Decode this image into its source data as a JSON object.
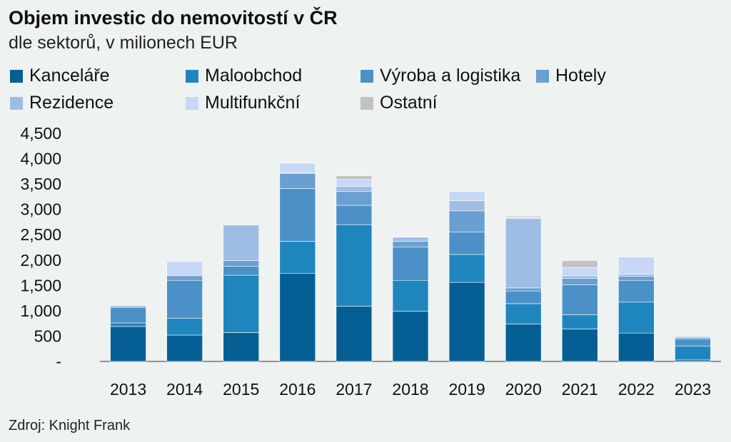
{
  "title": "Objem investic do nemovitostí v ČR",
  "subtitle": "dle sektorů, v milionech EUR",
  "source": "Zdroj: Knight Frank",
  "colors": {
    "Kanceláře": "#065f94",
    "Maloobchod": "#1f86bd",
    "Výroba a logistika": "#4b91c7",
    "Hotely": "#6a9fd1",
    "Rezidence": "#9ebde5",
    "Multifunkční": "#c6d8f6",
    "Ostatní": "#c2c2c2"
  },
  "chart_data": {
    "type": "bar",
    "stacked": true,
    "title": "Objem investic do nemovitostí v ČR",
    "subtitle": "dle sektorů, v milionech EUR",
    "xlabel": "",
    "ylabel": "",
    "ylim": [
      0,
      4500
    ],
    "yticks": [
      "-",
      "500",
      "1,000",
      "1,500",
      "2,000",
      "2,500",
      "3,000",
      "3,500",
      "4,000",
      "4,500"
    ],
    "grid": false,
    "legend_position": "top",
    "categories": [
      "2013",
      "2014",
      "2015",
      "2016",
      "2017",
      "2018",
      "2019",
      "2020",
      "2021",
      "2022",
      "2023"
    ],
    "series": [
      {
        "name": "Kanceláře",
        "values": [
          690,
          520,
          570,
          1740,
          1090,
          990,
          1560,
          740,
          640,
          560,
          30
        ]
      },
      {
        "name": "Maloobchod",
        "values": [
          70,
          330,
          1130,
          630,
          1610,
          610,
          550,
          400,
          280,
          610,
          270
        ]
      },
      {
        "name": "Výroba a logistika",
        "values": [
          300,
          750,
          180,
          1040,
          380,
          660,
          440,
          250,
          590,
          430,
          140
        ]
      },
      {
        "name": "Hotely",
        "values": [
          30,
          90,
          110,
          300,
          270,
          110,
          420,
          60,
          130,
          80,
          30
        ]
      },
      {
        "name": "Rezidence",
        "values": [
          0,
          0,
          700,
          10,
          100,
          80,
          200,
          1370,
          50,
          40,
          20
        ]
      },
      {
        "name": "Multifunkční",
        "values": [
          20,
          280,
          0,
          190,
          140,
          0,
          180,
          30,
          160,
          340,
          0
        ]
      },
      {
        "name": "Ostatní",
        "values": [
          0,
          0,
          0,
          0,
          70,
          10,
          0,
          20,
          140,
          0,
          0
        ]
      }
    ]
  }
}
